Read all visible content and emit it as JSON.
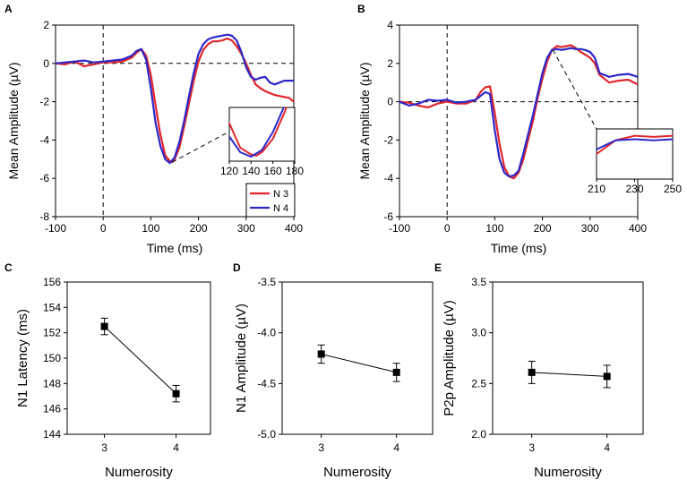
{
  "chart_data": [
    {
      "panel": "A",
      "type": "line",
      "xlabel": "Time (ms)",
      "ylabel": "Mean Amplitude (µV)",
      "xlim": [
        -100,
        400
      ],
      "ylim": [
        -8,
        2
      ],
      "xticks": [
        "-100",
        "0",
        "100",
        "200",
        "300",
        "400"
      ],
      "yticks": [
        "-8",
        "-6",
        "-4",
        "-2",
        "0",
        "2"
      ],
      "legend": [
        "N 3",
        "N 4"
      ],
      "series": [
        {
          "name": "N 3",
          "color": "#e0262b",
          "x": [
            -100,
            -80,
            -60,
            -40,
            -30,
            -20,
            0,
            20,
            40,
            60,
            70,
            80,
            90,
            100,
            110,
            120,
            130,
            140,
            145,
            150,
            160,
            170,
            180,
            190,
            200,
            210,
            220,
            230,
            240,
            250,
            260,
            270,
            280,
            290,
            300,
            310,
            320,
            330,
            340,
            350,
            360,
            370,
            380,
            390,
            400
          ],
          "y": [
            0,
            -0.05,
            0.1,
            -0.15,
            -0.1,
            -0.05,
            0.05,
            0.05,
            0.1,
            0.3,
            0.55,
            0.75,
            0.4,
            -0.6,
            -2.2,
            -3.7,
            -4.8,
            -5.1,
            -5.15,
            -5.0,
            -4.4,
            -3.3,
            -2.1,
            -0.9,
            0.1,
            0.7,
            1.0,
            1.15,
            1.15,
            1.2,
            1.3,
            1.2,
            0.9,
            0.5,
            0,
            -0.6,
            -1.1,
            -1.3,
            -1.45,
            -1.55,
            -1.65,
            -1.7,
            -1.75,
            -1.8,
            -2.0
          ]
        },
        {
          "name": "N 4",
          "color": "#2d27c9",
          "x": [
            -100,
            -80,
            -60,
            -40,
            -20,
            0,
            20,
            40,
            60,
            70,
            80,
            90,
            100,
            110,
            120,
            130,
            140,
            150,
            160,
            170,
            180,
            190,
            200,
            210,
            220,
            230,
            240,
            250,
            260,
            270,
            280,
            290,
            300,
            310,
            320,
            330,
            340,
            350,
            360,
            370,
            380,
            390,
            400
          ],
          "y": [
            0,
            0.05,
            0.1,
            0.15,
            0.05,
            0.1,
            0.15,
            0.2,
            0.4,
            0.65,
            0.75,
            0.2,
            -1.3,
            -3.1,
            -4.3,
            -5.0,
            -5.2,
            -4.9,
            -4.1,
            -3.0,
            -1.7,
            -0.5,
            0.5,
            1.0,
            1.25,
            1.35,
            1.4,
            1.45,
            1.5,
            1.45,
            1.2,
            0.6,
            -0.2,
            -0.7,
            -0.85,
            -0.75,
            -0.7,
            -1.0,
            -1.1,
            -1.0,
            -0.9,
            -0.9,
            -0.9
          ]
        }
      ],
      "inset": {
        "xlim": [
          120,
          180
        ],
        "xticks": [
          "120",
          "140",
          "160",
          "180"
        ]
      }
    },
    {
      "panel": "B",
      "type": "line",
      "xlabel": "Time (ms)",
      "ylabel": "Mean Amplitude (µV)",
      "xlim": [
        -100,
        400
      ],
      "ylim": [
        -6,
        4
      ],
      "xticks": [
        "-100",
        "0",
        "100",
        "200",
        "300",
        "400"
      ],
      "yticks": [
        "-6",
        "-4",
        "-2",
        "0",
        "2",
        "4"
      ],
      "series": [
        {
          "name": "N 3",
          "color": "#e0262b",
          "x": [
            -100,
            -80,
            -60,
            -40,
            -20,
            0,
            20,
            40,
            60,
            70,
            80,
            90,
            100,
            110,
            120,
            130,
            140,
            150,
            160,
            170,
            180,
            190,
            200,
            210,
            220,
            230,
            240,
            250,
            260,
            270,
            280,
            290,
            300,
            310,
            320,
            340,
            360,
            380,
            400
          ],
          "y": [
            0,
            -0.05,
            -0.2,
            -0.3,
            -0.1,
            0,
            -0.1,
            -0.1,
            0.1,
            0.5,
            0.75,
            0.8,
            -0.6,
            -2.2,
            -3.4,
            -3.9,
            -4.0,
            -3.7,
            -3.0,
            -2.0,
            -1.0,
            0.2,
            1.2,
            2.1,
            2.7,
            2.9,
            2.85,
            2.9,
            2.95,
            2.8,
            2.6,
            2.45,
            2.3,
            2.0,
            1.4,
            1.0,
            1.1,
            1.15,
            0.9
          ]
        },
        {
          "name": "N 4",
          "color": "#2d27c9",
          "x": [
            -100,
            -80,
            -60,
            -40,
            -20,
            0,
            20,
            40,
            60,
            70,
            80,
            90,
            100,
            110,
            120,
            130,
            140,
            150,
            160,
            170,
            180,
            190,
            200,
            210,
            220,
            230,
            240,
            250,
            260,
            270,
            280,
            290,
            300,
            310,
            320,
            340,
            360,
            380,
            400
          ],
          "y": [
            0,
            -0.2,
            -0.1,
            0.1,
            0.05,
            0.1,
            -0.05,
            0,
            0.1,
            0.3,
            0.5,
            0.4,
            -1.5,
            -3.0,
            -3.7,
            -3.9,
            -3.85,
            -3.6,
            -2.7,
            -1.7,
            -0.7,
            0.4,
            1.5,
            2.3,
            2.7,
            2.75,
            2.7,
            2.75,
            2.8,
            2.75,
            2.75,
            2.7,
            2.6,
            2.3,
            1.5,
            1.3,
            1.4,
            1.45,
            1.3
          ]
        }
      ],
      "inset": {
        "xlim": [
          210,
          250
        ],
        "xticks": [
          "210",
          "230",
          "250"
        ]
      }
    },
    {
      "panel": "C",
      "type": "scatter",
      "xlabel": "Numerosity",
      "ylabel": "N1 Latency (ms)",
      "categories": [
        "3",
        "4"
      ],
      "values": [
        152.5,
        147.2
      ],
      "errors": [
        0.65,
        0.65
      ],
      "ylim": [
        144,
        156
      ],
      "yticks": [
        "144",
        "146",
        "148",
        "150",
        "152",
        "154",
        "156"
      ]
    },
    {
      "panel": "D",
      "type": "scatter",
      "xlabel": "Numerosity",
      "ylabel": "N1 Amplitude (µV)",
      "categories": [
        "3",
        "4"
      ],
      "values": [
        -4.21,
        -4.39
      ],
      "errors": [
        0.09,
        0.09
      ],
      "ylim": [
        -5.0,
        -3.5
      ],
      "yticks": [
        "-5.0",
        "-4.5",
        "-4.0",
        "-3.5"
      ]
    },
    {
      "panel": "E",
      "type": "scatter",
      "xlabel": "Numerosity",
      "ylabel": "P2p Amplitude (µV)",
      "categories": [
        "3",
        "4"
      ],
      "values": [
        2.61,
        2.57
      ],
      "errors": [
        0.11,
        0.11
      ],
      "ylim": [
        2.0,
        3.5
      ],
      "yticks": [
        "2.0",
        "2.5",
        "3.0",
        "3.5"
      ]
    }
  ]
}
